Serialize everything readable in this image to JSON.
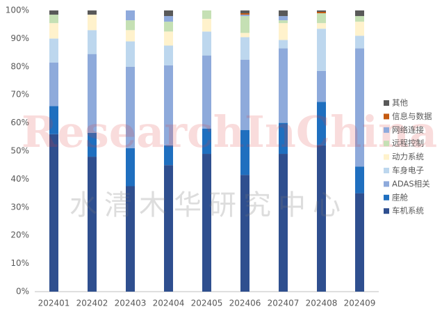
{
  "chart_data": {
    "type": "stacked_bar_percent",
    "categories": [
      "202401",
      "202402",
      "202403",
      "202404",
      "202405",
      "202406",
      "202407",
      "202408",
      "202409"
    ],
    "series": [
      {
        "name": "车机系统",
        "color": "#2f4f8f",
        "values": [
          56,
          48,
          37.5,
          45,
          49,
          41.5,
          49,
          52,
          35
        ]
      },
      {
        "name": "座舱",
        "color": "#1f6fbf",
        "values": [
          10,
          8.5,
          13.5,
          7,
          9,
          16,
          11,
          15.5,
          9.5
        ]
      },
      {
        "name": "ADAS相关",
        "color": "#8eaadb",
        "values": [
          15.5,
          28,
          29,
          28.5,
          26,
          25,
          26.5,
          11,
          42
        ]
      },
      {
        "name": "车身电子",
        "color": "#bdd7ee",
        "values": [
          8.5,
          8.5,
          9,
          7,
          8.5,
          8,
          3,
          15,
          4.5
        ]
      },
      {
        "name": "动力系统",
        "color": "#fff2cc",
        "values": [
          5.5,
          5.5,
          4,
          5,
          4.5,
          1.5,
          6,
          2,
          5
        ]
      },
      {
        "name": "远程控制",
        "color": "#c5e0b4",
        "values": [
          3,
          0,
          3.5,
          3.5,
          3,
          6,
          1,
          3.5,
          2
        ]
      },
      {
        "name": "网络连接",
        "color": "#8faadc",
        "values": [
          0,
          0,
          3.5,
          2,
          0,
          0.5,
          1.5,
          0,
          0
        ]
      },
      {
        "name": "信息与数据",
        "color": "#c55a11",
        "values": [
          0,
          0,
          0,
          0,
          0,
          0.5,
          0,
          0.5,
          0
        ]
      },
      {
        "name": "其他",
        "color": "#595959",
        "values": [
          1.5,
          1.5,
          0,
          2,
          0,
          1,
          2,
          0.5,
          2
        ]
      }
    ],
    "ylim": [
      0,
      100
    ],
    "yticks": [
      {
        "value": 0,
        "label": "0%"
      },
      {
        "value": 10,
        "label": "10%"
      },
      {
        "value": 20,
        "label": "20%"
      },
      {
        "value": 30,
        "label": "30%"
      },
      {
        "value": 40,
        "label": "40%"
      },
      {
        "value": 50,
        "label": "50%"
      },
      {
        "value": 60,
        "label": "60%"
      },
      {
        "value": 70,
        "label": "70%"
      },
      {
        "value": 80,
        "label": "80%"
      },
      {
        "value": 90,
        "label": "90%"
      },
      {
        "value": 100,
        "label": "100%"
      }
    ],
    "grid": false,
    "legend": "right",
    "watermark": [
      "ResearchInChina",
      "水清木华研究中心"
    ]
  }
}
